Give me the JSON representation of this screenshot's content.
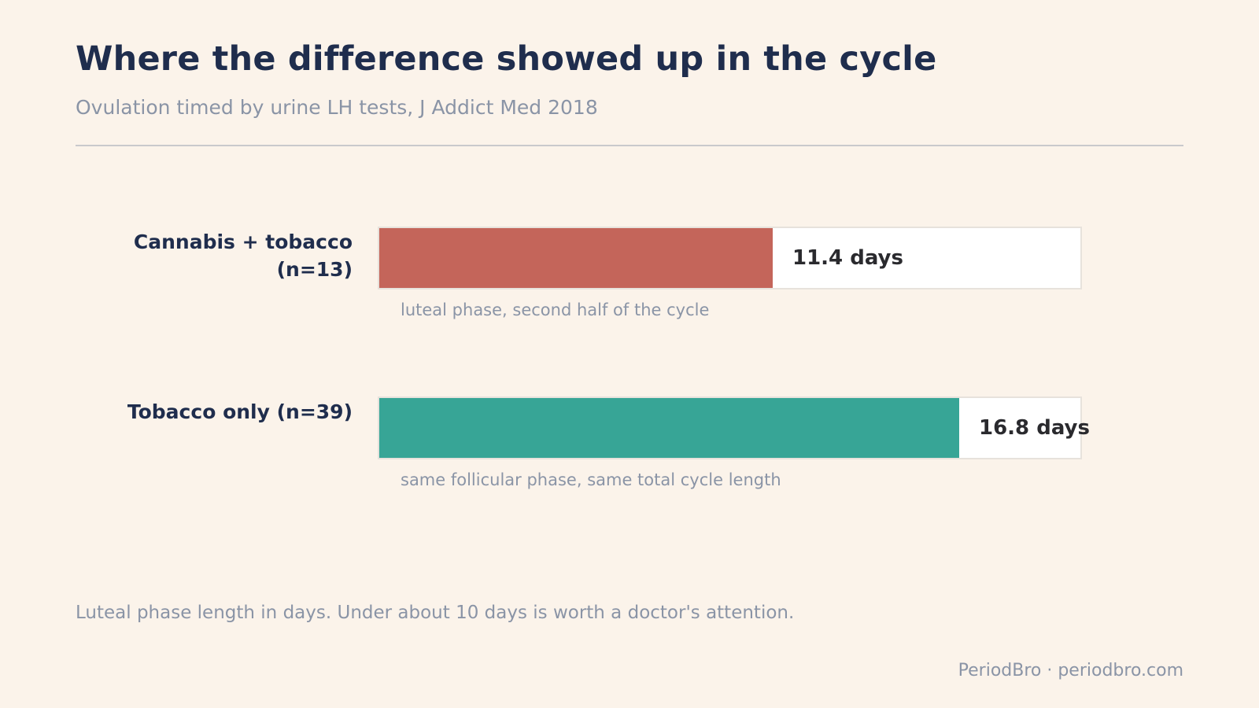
{
  "header": {
    "title": "Where the difference showed up in the cycle",
    "subtitle": "Ovulation timed by urine LH tests, J Addict Med 2018"
  },
  "chart_data": {
    "type": "bar",
    "orientation": "horizontal",
    "categories": [
      "Cannabis + tobacco (n=13)",
      "Tobacco only (n=39)"
    ],
    "values": [
      11.4,
      16.8
    ],
    "unit": "days",
    "value_labels": [
      "11.4 days",
      "16.8 days"
    ],
    "notes": [
      "luteal phase, second half of the cycle",
      "same follicular phase, same total cycle length"
    ],
    "colors": [
      "#c4655a",
      "#37a596"
    ],
    "xlim": [
      0,
      20.3
    ],
    "grid": false,
    "legend": "none"
  },
  "rows": [
    {
      "label_line1": "Cannabis + tobacco",
      "label_line2": "(n=13)"
    },
    {
      "label_line1": "Tobacco only (n=39)",
      "label_line2": ""
    }
  ],
  "footer": {
    "footnote": "Luteal phase length in days. Under about 10 days is worth a doctor's attention.",
    "credit": "PeriodBro · periodbro.com"
  }
}
